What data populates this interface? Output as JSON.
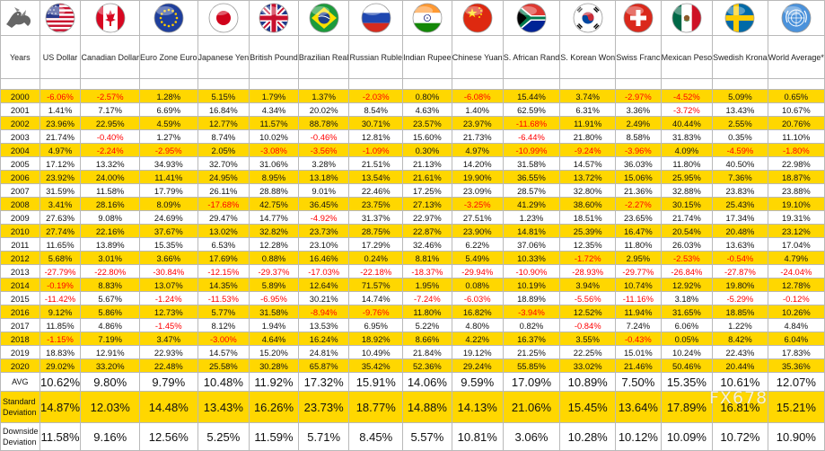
{
  "header": {
    "years_label": "Years",
    "currencies": [
      {
        "label": "US Dollar",
        "flag_icon": "us-flag-icon"
      },
      {
        "label": "Canadian Dollar",
        "flag_icon": "canada-flag-icon"
      },
      {
        "label": "Euro Zone Euro",
        "flag_icon": "eu-flag-icon"
      },
      {
        "label": "Japanese Yen",
        "flag_icon": "japan-flag-icon"
      },
      {
        "label": "British Pound",
        "flag_icon": "uk-flag-icon"
      },
      {
        "label": "Brazilian Real",
        "flag_icon": "brazil-flag-icon"
      },
      {
        "label": "Russian Ruble",
        "flag_icon": "russia-flag-icon"
      },
      {
        "label": "Indian Rupee",
        "flag_icon": "india-flag-icon"
      },
      {
        "label": "Chinese Yuan",
        "flag_icon": "china-flag-icon"
      },
      {
        "label": "S. African Rand",
        "flag_icon": "south-africa-flag-icon"
      },
      {
        "label": "S. Korean Won",
        "flag_icon": "south-korea-flag-icon"
      },
      {
        "label": "Swiss Franc",
        "flag_icon": "switzerland-flag-icon"
      },
      {
        "label": "Mexican Peso",
        "flag_icon": "mexico-flag-icon"
      },
      {
        "label": "Swedish Krona",
        "flag_icon": "sweden-flag-icon"
      },
      {
        "label": "World Average*",
        "flag_icon": "un-flag-icon"
      }
    ]
  },
  "colors": {
    "highlight": "#ffd700",
    "negative": "#ff0000",
    "text": "#111111"
  },
  "watermark": "FX678",
  "chart_data": {
    "type": "table",
    "categories": [
      "2000",
      "2001",
      "2002",
      "2003",
      "2004",
      "2005",
      "2006",
      "2007",
      "2008",
      "2009",
      "2010",
      "2011",
      "2012",
      "2013",
      "2014",
      "2015",
      "2016",
      "2017",
      "2018",
      "2019",
      "2020"
    ],
    "rows": [
      {
        "year": "2000",
        "values": [
          "-6.06%",
          "-2.57%",
          "1.28%",
          "5.15%",
          "1.79%",
          "1.37%",
          "-2.03%",
          "0.80%",
          "-6.08%",
          "15.44%",
          "3.74%",
          "-2.97%",
          "-4.52%",
          "5.09%",
          "0.65%"
        ]
      },
      {
        "year": "2001",
        "values": [
          "1.41%",
          "7.17%",
          "6.69%",
          "16.84%",
          "4.34%",
          "20.02%",
          "8.54%",
          "4.63%",
          "1.40%",
          "62.59%",
          "6.31%",
          "3.36%",
          "-3.72%",
          "13.43%",
          "10.67%"
        ]
      },
      {
        "year": "2002",
        "values": [
          "23.96%",
          "22.95%",
          "4.59%",
          "12.77%",
          "11.57%",
          "88.78%",
          "30.71%",
          "23.57%",
          "23.97%",
          "-11.68%",
          "11.91%",
          "2.49%",
          "40.44%",
          "2.55%",
          "20.76%"
        ]
      },
      {
        "year": "2003",
        "values": [
          "21.74%",
          "-0.40%",
          "1.27%",
          "8.74%",
          "10.02%",
          "-0.46%",
          "12.81%",
          "15.60%",
          "21.73%",
          "-6.44%",
          "21.80%",
          "8.58%",
          "31.83%",
          "0.35%",
          "11.10%"
        ]
      },
      {
        "year": "2004",
        "values": [
          "4.97%",
          "-2.24%",
          "-2.95%",
          "2.05%",
          "-3.08%",
          "-3.56%",
          "-1.09%",
          "0.30%",
          "4.97%",
          "-10.99%",
          "-9.24%",
          "-3.96%",
          "4.09%",
          "-4.59%",
          "-1.80%"
        ]
      },
      {
        "year": "2005",
        "values": [
          "17.12%",
          "13.32%",
          "34.93%",
          "32.70%",
          "31.06%",
          "3.28%",
          "21.51%",
          "21.13%",
          "14.20%",
          "31.58%",
          "14.57%",
          "36.03%",
          "11.80%",
          "40.50%",
          "22.98%"
        ]
      },
      {
        "year": "2006",
        "values": [
          "23.92%",
          "24.00%",
          "11.41%",
          "24.95%",
          "8.95%",
          "13.18%",
          "13.54%",
          "21.61%",
          "19.90%",
          "36.55%",
          "13.72%",
          "15.06%",
          "25.95%",
          "7.36%",
          "18.87%"
        ]
      },
      {
        "year": "2007",
        "values": [
          "31.59%",
          "11.58%",
          "17.79%",
          "26.11%",
          "28.88%",
          "9.01%",
          "22.46%",
          "17.25%",
          "23.09%",
          "28.57%",
          "32.80%",
          "21.36%",
          "32.88%",
          "23.83%",
          "23.88%"
        ]
      },
      {
        "year": "2008",
        "values": [
          "3.41%",
          "28.16%",
          "8.09%",
          "-17.68%",
          "42.75%",
          "36.45%",
          "23.75%",
          "27.13%",
          "-3.25%",
          "41.29%",
          "38.60%",
          "-2.27%",
          "30.15%",
          "25.43%",
          "19.10%"
        ]
      },
      {
        "year": "2009",
        "values": [
          "27.63%",
          "9.08%",
          "24.69%",
          "29.47%",
          "14.77%",
          "-4.92%",
          "31.37%",
          "22.97%",
          "27.51%",
          "1.23%",
          "18.51%",
          "23.65%",
          "21.74%",
          "17.34%",
          "19.31%"
        ]
      },
      {
        "year": "2010",
        "values": [
          "27.74%",
          "22.16%",
          "37.67%",
          "13.02%",
          "32.82%",
          "23.73%",
          "28.75%",
          "22.87%",
          "23.90%",
          "14.81%",
          "25.39%",
          "16.47%",
          "20.54%",
          "20.48%",
          "23.12%"
        ]
      },
      {
        "year": "2011",
        "values": [
          "11.65%",
          "13.89%",
          "15.35%",
          "6.53%",
          "12.28%",
          "23.10%",
          "17.29%",
          "32.46%",
          "6.22%",
          "37.06%",
          "12.35%",
          "11.80%",
          "26.03%",
          "13.63%",
          "17.04%"
        ]
      },
      {
        "year": "2012",
        "values": [
          "5.68%",
          "3.01%",
          "3.66%",
          "17.69%",
          "0.88%",
          "16.46%",
          "0.24%",
          "8.81%",
          "5.49%",
          "10.33%",
          "-1.72%",
          "2.95%",
          "-2.53%",
          "-0.54%",
          "4.79%"
        ]
      },
      {
        "year": "2013",
        "values": [
          "-27.79%",
          "-22.80%",
          "-30.84%",
          "-12.15%",
          "-29.37%",
          "-17.03%",
          "-22.18%",
          "-18.37%",
          "-29.94%",
          "-10.90%",
          "-28.93%",
          "-29.77%",
          "-26.84%",
          "-27.87%",
          "-24.04%"
        ]
      },
      {
        "year": "2014",
        "values": [
          "-0.19%",
          "8.83%",
          "13.07%",
          "14.35%",
          "5.89%",
          "12.64%",
          "71.57%",
          "1.95%",
          "0.08%",
          "10.19%",
          "3.94%",
          "10.74%",
          "12.92%",
          "19.80%",
          "12.78%"
        ]
      },
      {
        "year": "2015",
        "values": [
          "-11.42%",
          "5.67%",
          "-1.24%",
          "-11.53%",
          "-6.95%",
          "30.21%",
          "14.74%",
          "-7.24%",
          "-6.03%",
          "18.89%",
          "-5.56%",
          "-11.16%",
          "3.18%",
          "-5.29%",
          "-0.12%"
        ]
      },
      {
        "year": "2016",
        "values": [
          "9.12%",
          "5.86%",
          "12.73%",
          "5.77%",
          "31.58%",
          "-8.94%",
          "-9.76%",
          "11.80%",
          "16.82%",
          "-3.94%",
          "12.52%",
          "11.94%",
          "31.65%",
          "18.85%",
          "10.26%"
        ]
      },
      {
        "year": "2017",
        "values": [
          "11.85%",
          "4.86%",
          "-1.45%",
          "8.12%",
          "1.94%",
          "13.53%",
          "6.95%",
          "5.22%",
          "4.80%",
          "0.82%",
          "-0.84%",
          "7.24%",
          "6.06%",
          "1.22%",
          "4.84%"
        ]
      },
      {
        "year": "2018",
        "values": [
          "-1.15%",
          "7.19%",
          "3.47%",
          "-3.00%",
          "4.64%",
          "16.24%",
          "18.92%",
          "8.66%",
          "4.22%",
          "16.37%",
          "3.55%",
          "-0.43%",
          "0.05%",
          "8.42%",
          "6.04%"
        ]
      },
      {
        "year": "2019",
        "values": [
          "18.83%",
          "12.91%",
          "22.93%",
          "14.57%",
          "15.20%",
          "24.81%",
          "10.49%",
          "21.84%",
          "19.12%",
          "21.25%",
          "22.25%",
          "15.01%",
          "10.24%",
          "22.43%",
          "17.83%"
        ]
      },
      {
        "year": "2020",
        "values": [
          "29.02%",
          "33.20%",
          "22.48%",
          "25.58%",
          "30.28%",
          "65.87%",
          "35.42%",
          "52.36%",
          "29.24%",
          "55.85%",
          "33.02%",
          "21.46%",
          "50.46%",
          "20.44%",
          "35.36%"
        ]
      }
    ],
    "stats": [
      {
        "label": "AVG",
        "values": [
          "10.62%",
          "9.80%",
          "9.79%",
          "10.48%",
          "11.92%",
          "17.32%",
          "15.91%",
          "14.06%",
          "9.59%",
          "17.09%",
          "10.89%",
          "7.50%",
          "15.35%",
          "10.61%",
          "12.07%"
        ]
      },
      {
        "label": "Standard Deviation",
        "values": [
          "14.87%",
          "12.03%",
          "14.48%",
          "13.43%",
          "16.26%",
          "23.73%",
          "18.77%",
          "14.88%",
          "14.13%",
          "21.06%",
          "15.45%",
          "13.64%",
          "17.89%",
          "16.81%",
          "15.21%"
        ]
      },
      {
        "label": "Downside Deviation",
        "values": [
          "11.58%",
          "9.16%",
          "12.56%",
          "5.25%",
          "11.59%",
          "5.71%",
          "8.45%",
          "5.57%",
          "10.81%",
          "3.06%",
          "10.28%",
          "10.12%",
          "10.09%",
          "10.72%",
          "10.90%"
        ]
      }
    ]
  }
}
